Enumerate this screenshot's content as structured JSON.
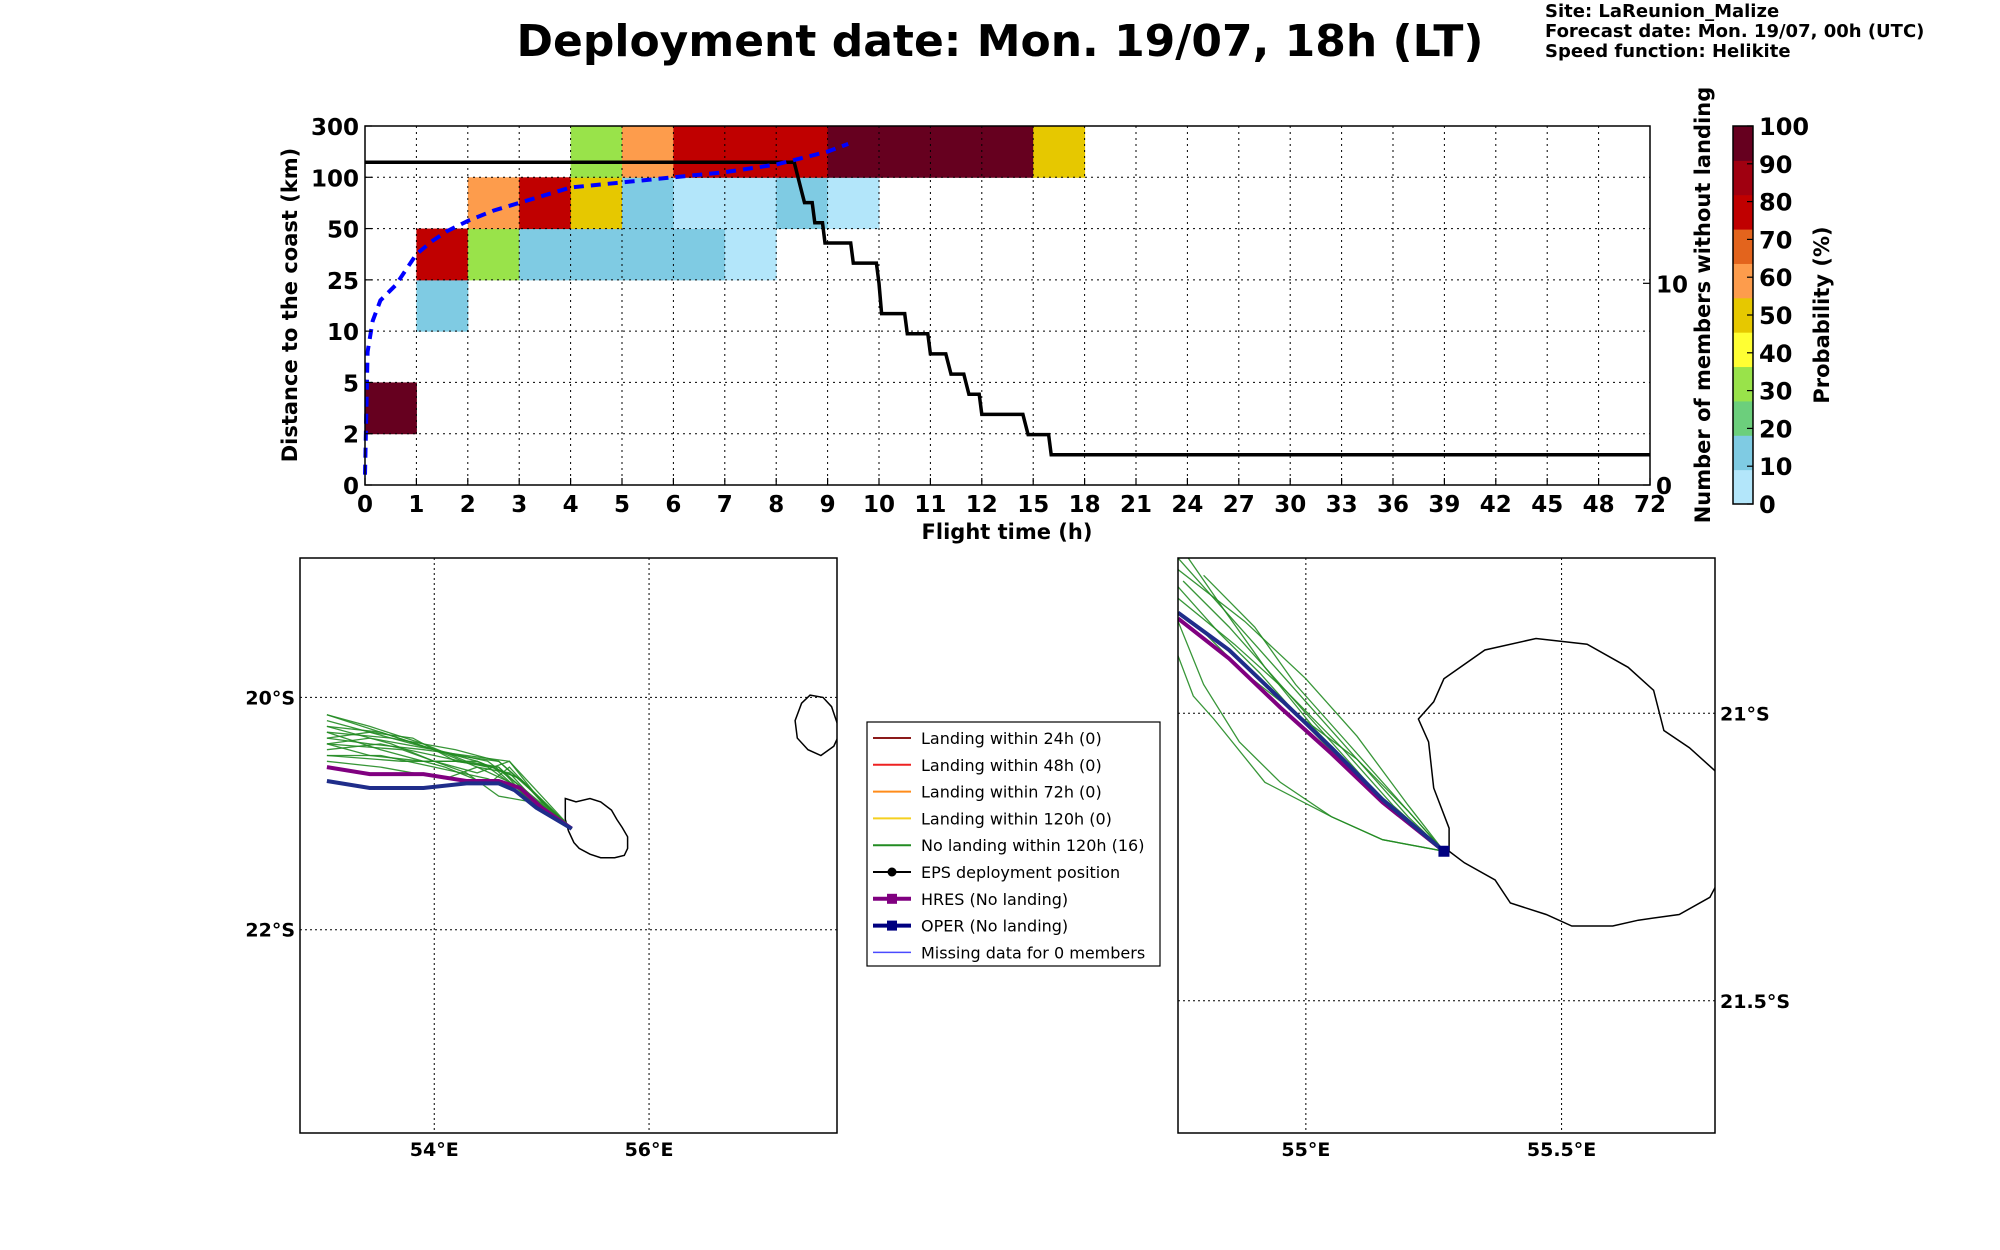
{
  "title": "Deployment date: Mon. 19/07, 18h (LT)",
  "info": {
    "site": "Site: LaReunion_Malize",
    "forecast": "Forecast date: Mon. 19/07, 00h (UTC)",
    "speed": "Speed function: Helikite"
  },
  "chart_data": [
    {
      "type": "heatmap",
      "xlabel": "Flight time (h)",
      "ylabel": "Distance to the coast (km)",
      "y2label": "Number of members without landing",
      "x_ticks": [
        "0",
        "1",
        "2",
        "3",
        "4",
        "5",
        "6",
        "7",
        "8",
        "9",
        "10",
        "11",
        "12",
        "15",
        "18",
        "21",
        "24",
        "27",
        "30",
        "33",
        "36",
        "39",
        "42",
        "45",
        "48",
        "72"
      ],
      "y_ticks": [
        "0",
        "2",
        "5",
        "10",
        "25",
        "50",
        "100",
        "300"
      ],
      "y2_ticks": [
        "0",
        "10"
      ],
      "y2_range": [
        0,
        17.8
      ],
      "grid": true,
      "colorbar": {
        "label": "Probability (%)",
        "ticks": [
          "0",
          "10",
          "20",
          "30",
          "40",
          "50",
          "60",
          "70",
          "80",
          "90",
          "100"
        ],
        "colors": [
          "#b3e6fa",
          "#7fcbe3",
          "#6ccf7c",
          "#99e34a",
          "#ffff33",
          "#e6c800",
          "#fd9c4c",
          "#e3641d",
          "#c00000",
          "#a00010",
          "#66001f"
        ]
      },
      "cells": [
        {
          "x": 0,
          "y": 1,
          "p": 100
        },
        {
          "x": 1,
          "y": 3,
          "p": 10
        },
        {
          "x": 1,
          "y": 4,
          "p": 80
        },
        {
          "x": 2,
          "y": 4,
          "p": 30
        },
        {
          "x": 2,
          "y": 5,
          "p": 60
        },
        {
          "x": 3,
          "y": 4,
          "p": 10
        },
        {
          "x": 3,
          "y": 5,
          "p": 80
        },
        {
          "x": 4,
          "y": 4,
          "p": 10
        },
        {
          "x": 4,
          "y": 5,
          "p": 50
        },
        {
          "x": 4,
          "y": 6,
          "p": 30
        },
        {
          "x": 5,
          "y": 4,
          "p": 10
        },
        {
          "x": 5,
          "y": 5,
          "p": 10
        },
        {
          "x": 5,
          "y": 6,
          "p": 60
        },
        {
          "x": 6,
          "y": 4,
          "p": 10
        },
        {
          "x": 6,
          "y": 5,
          "p": 0
        },
        {
          "x": 6,
          "y": 6,
          "p": 80
        },
        {
          "x": 7,
          "y": 4,
          "p": 0
        },
        {
          "x": 7,
          "y": 5,
          "p": 0
        },
        {
          "x": 7,
          "y": 6,
          "p": 80
        },
        {
          "x": 8,
          "y": 5,
          "p": 10
        },
        {
          "x": 8,
          "y": 6,
          "p": 80
        },
        {
          "x": 9,
          "y": 5,
          "p": 0
        },
        {
          "x": 9,
          "y": 6,
          "p": 100
        },
        {
          "x": 10,
          "y": 6,
          "p": 100
        },
        {
          "x": 11,
          "y": 6,
          "p": 100
        },
        {
          "x": 12,
          "y": 6,
          "p": 100
        },
        {
          "x": 13,
          "y": 6,
          "p": 50
        }
      ],
      "members_without_landing": {
        "x": [
          0,
          8.35,
          8.5,
          8.55,
          8.7,
          8.75,
          8.9,
          8.95,
          9.45,
          9.5,
          9.95,
          10,
          10.05,
          10.5,
          10.55,
          10.95,
          11,
          11.3,
          11.4,
          11.65,
          11.75,
          11.95,
          12,
          12.8,
          12.9,
          13.3,
          13.35,
          25
        ],
        "y": [
          16,
          16,
          14.5,
          14,
          14,
          13,
          13,
          12,
          12,
          11,
          11,
          10,
          8.5,
          8.5,
          7.5,
          7.5,
          6.5,
          6.5,
          5.5,
          5.5,
          4.5,
          4.5,
          3.5,
          3.5,
          2.5,
          2.5,
          1.5,
          1.5
        ]
      },
      "mean_distance": {
        "x": [
          0,
          0.05,
          0.15,
          0.3,
          0.6,
          0.8,
          1.0,
          1.3,
          1.6,
          2.0,
          2.5,
          3.0,
          3.5,
          4.0,
          5.0,
          6.0,
          7.0,
          8.0,
          9.0,
          9.4
        ],
        "y": [
          0.2,
          2.6,
          3.2,
          3.6,
          3.9,
          4.2,
          4.5,
          4.75,
          4.95,
          5.15,
          5.35,
          5.5,
          5.65,
          5.8,
          5.9,
          6.0,
          6.1,
          6.25,
          6.5,
          6.65
        ]
      }
    },
    {
      "type": "scatter",
      "name": "regional trajectory map",
      "xlabel": "",
      "ylabel": "",
      "x_ticks": [
        "54°E",
        "56°E"
      ],
      "y_ticks": [
        "20°S",
        "22°S"
      ],
      "lon_range": [
        52.75,
        57.75
      ],
      "lat_range": [
        -23.75,
        -18.8
      ],
      "grid": true,
      "hres_track": {
        "lon": [
          53.0,
          53.4,
          53.9,
          54.3,
          54.6,
          54.8,
          55.0,
          55.28
        ],
        "lat": [
          -20.6,
          -20.66,
          -20.66,
          -20.72,
          -20.72,
          -20.78,
          -20.95,
          -21.13
        ]
      },
      "oper_track": {
        "lon": [
          53.0,
          53.4,
          53.9,
          54.3,
          54.6,
          54.75,
          54.95,
          55.28
        ],
        "lat": [
          -20.72,
          -20.78,
          -20.78,
          -20.74,
          -20.74,
          -20.8,
          -20.95,
          -21.13
        ]
      },
      "members": [
        {
          "lon": [
            53.0,
            53.4,
            53.9,
            54.3,
            54.6,
            54.9,
            55.28
          ],
          "lat": [
            -20.15,
            -20.25,
            -20.4,
            -20.55,
            -20.6,
            -20.9,
            -21.13
          ]
        },
        {
          "lon": [
            53.0,
            53.5,
            54.0,
            54.4,
            54.7,
            54.95,
            55.28
          ],
          "lat": [
            -20.25,
            -20.3,
            -20.45,
            -20.6,
            -20.65,
            -20.9,
            -21.13
          ]
        },
        {
          "lon": [
            53.0,
            53.4,
            53.8,
            54.2,
            54.55,
            54.85,
            55.28
          ],
          "lat": [
            -20.35,
            -20.3,
            -20.35,
            -20.55,
            -20.6,
            -20.85,
            -21.13
          ]
        },
        {
          "lon": [
            53.0,
            53.5,
            54.0,
            54.5,
            54.8,
            55.28
          ],
          "lat": [
            -20.45,
            -20.4,
            -20.5,
            -20.6,
            -20.8,
            -21.13
          ]
        },
        {
          "lon": [
            53.0,
            53.6,
            54.2,
            54.6,
            54.9,
            55.28
          ],
          "lat": [
            -20.2,
            -20.35,
            -20.5,
            -20.55,
            -20.8,
            -21.13
          ]
        },
        {
          "lon": [
            53.0,
            53.4,
            53.9,
            54.4,
            54.8,
            55.28
          ],
          "lat": [
            -20.4,
            -20.5,
            -20.55,
            -20.55,
            -20.7,
            -21.13
          ]
        },
        {
          "lon": [
            53.0,
            53.5,
            54.1,
            54.5,
            54.7,
            55.0,
            55.28
          ],
          "lat": [
            -20.3,
            -20.45,
            -20.6,
            -20.75,
            -20.6,
            -20.9,
            -21.13
          ]
        },
        {
          "lon": [
            53.0,
            53.7,
            54.3,
            54.6,
            54.9,
            55.28
          ],
          "lat": [
            -20.4,
            -20.45,
            -20.65,
            -20.85,
            -20.9,
            -21.13
          ]
        },
        {
          "lon": [
            53.0,
            53.5,
            54.0,
            54.5,
            54.8,
            55.28
          ],
          "lat": [
            -20.5,
            -20.5,
            -20.6,
            -20.7,
            -20.82,
            -21.13
          ]
        },
        {
          "lon": [
            53.0,
            53.6,
            54.0,
            54.4,
            54.7,
            55.0,
            55.28
          ],
          "lat": [
            -20.25,
            -20.4,
            -20.55,
            -20.65,
            -20.55,
            -20.85,
            -21.13
          ]
        },
        {
          "lon": [
            53.0,
            53.4,
            53.9,
            54.3,
            54.7,
            55.0,
            55.28
          ],
          "lat": [
            -20.35,
            -20.4,
            -20.45,
            -20.5,
            -20.55,
            -20.9,
            -21.13
          ]
        },
        {
          "lon": [
            53.0,
            53.5,
            54.1,
            54.4,
            54.75,
            55.28
          ],
          "lat": [
            -20.55,
            -20.6,
            -20.7,
            -20.6,
            -20.75,
            -21.13
          ]
        },
        {
          "lon": [
            53.0,
            53.6,
            54.2,
            54.6,
            54.85,
            55.28
          ],
          "lat": [
            -20.3,
            -20.35,
            -20.45,
            -20.55,
            -20.75,
            -21.13
          ]
        },
        {
          "lon": [
            53.0,
            53.5,
            54.0,
            54.4,
            54.8,
            55.28
          ],
          "lat": [
            -20.15,
            -20.3,
            -20.45,
            -20.55,
            -20.7,
            -21.13
          ]
        },
        {
          "lon": [
            53.0,
            53.4,
            54.0,
            54.5,
            54.85,
            55.28
          ],
          "lat": [
            -20.4,
            -20.35,
            -20.45,
            -20.55,
            -20.8,
            -21.13
          ]
        },
        {
          "lon": [
            53.0,
            53.7,
            54.2,
            54.6,
            54.9,
            55.28
          ],
          "lat": [
            -20.5,
            -20.55,
            -20.55,
            -20.6,
            -20.85,
            -21.13
          ]
        }
      ]
    },
    {
      "type": "scatter",
      "name": "zoomed trajectory map",
      "xlabel": "",
      "ylabel": "",
      "x_ticks": [
        "55°E",
        "55.5°E"
      ],
      "y_ticks": [
        "21°S",
        "21.5°S"
      ],
      "lon_range": [
        54.75,
        55.8
      ],
      "lat_range": [
        -21.73,
        -20.73
      ],
      "grid": true,
      "deployment": {
        "lon": 55.27,
        "lat": -21.24
      },
      "hres_track": {
        "lon": [
          54.75,
          54.85,
          54.95,
          55.05,
          55.15,
          55.27
        ],
        "lat": [
          -20.835,
          -20.905,
          -20.99,
          -21.07,
          -21.155,
          -21.24
        ]
      },
      "oper_track": {
        "lon": [
          54.75,
          54.85,
          54.95,
          55.05,
          55.15,
          55.27
        ],
        "lat": [
          -20.825,
          -20.89,
          -20.975,
          -21.06,
          -21.15,
          -21.24
        ]
      },
      "members": [
        {
          "lon": [
            54.75,
            54.82,
            54.9,
            55.0,
            55.1,
            55.2,
            55.27
          ],
          "lat": [
            -20.73,
            -20.8,
            -20.88,
            -20.98,
            -21.08,
            -21.18,
            -21.24
          ]
        },
        {
          "lon": [
            54.76,
            54.85,
            54.95,
            55.05,
            55.15,
            55.27
          ],
          "lat": [
            -20.77,
            -20.85,
            -20.95,
            -21.05,
            -21.15,
            -21.24
          ]
        },
        {
          "lon": [
            54.75,
            54.86,
            54.96,
            55.07,
            55.17,
            55.27
          ],
          "lat": [
            -20.8,
            -20.88,
            -20.96,
            -21.06,
            -21.16,
            -21.24
          ]
        },
        {
          "lon": [
            54.75,
            54.8,
            54.87,
            54.95,
            55.05,
            55.15,
            55.27
          ],
          "lat": [
            -20.84,
            -20.95,
            -21.05,
            -21.12,
            -21.18,
            -21.22,
            -21.24
          ]
        },
        {
          "lon": [
            54.75,
            54.78,
            54.82,
            54.92,
            55.05,
            55.15,
            55.27
          ],
          "lat": [
            -20.9,
            -20.97,
            -21.01,
            -21.12,
            -21.18,
            -21.22,
            -21.24
          ]
        },
        {
          "lon": [
            54.8,
            54.9,
            54.98,
            55.08,
            55.18,
            55.27
          ],
          "lat": [
            -20.76,
            -20.85,
            -20.95,
            -21.05,
            -21.15,
            -21.24
          ]
        },
        {
          "lon": [
            54.75,
            54.88,
            55.0,
            55.1,
            55.2,
            55.27
          ],
          "lat": [
            -20.75,
            -20.84,
            -20.94,
            -21.04,
            -21.16,
            -21.24
          ]
        },
        {
          "lon": [
            54.79,
            54.88,
            54.98,
            55.1,
            55.2,
            55.27
          ],
          "lat": [
            -20.85,
            -20.93,
            -21.0,
            -21.08,
            -21.17,
            -21.24
          ]
        },
        {
          "lon": [
            54.77,
            54.84,
            54.92,
            55.02,
            55.14,
            55.27
          ],
          "lat": [
            -20.73,
            -20.82,
            -20.92,
            -21.03,
            -21.14,
            -21.24
          ]
        },
        {
          "lon": [
            54.75,
            54.83,
            54.91,
            55.0,
            55.12,
            55.27
          ],
          "lat": [
            -20.78,
            -20.86,
            -20.93,
            -21.02,
            -21.13,
            -21.24
          ]
        }
      ]
    }
  ],
  "legend": {
    "items": [
      {
        "label": "Landing within 24h (0)",
        "color": "#8b1a1a",
        "marker": "none",
        "width": 2
      },
      {
        "label": "Landing within 48h (0)",
        "color": "#ee2222",
        "marker": "none",
        "width": 2
      },
      {
        "label": "Landing within 72h (0)",
        "color": "#ff8c1a",
        "marker": "none",
        "width": 2
      },
      {
        "label": "Landing within 120h (0)",
        "color": "#f5d020",
        "marker": "none",
        "width": 2
      },
      {
        "label": "No landing within 120h (16)",
        "color": "#228b22",
        "marker": "none",
        "width": 2
      },
      {
        "label": "EPS deployment position",
        "color": "#000000",
        "marker": "circle",
        "width": 2
      },
      {
        "label": "HRES (No landing)",
        "color": "#800080",
        "marker": "square",
        "width": 4
      },
      {
        "label": "OPER (No landing)",
        "color": "#000080",
        "marker": "square",
        "width": 4
      },
      {
        "label": "Missing data for 0 members",
        "color": "#4a4aff",
        "marker": "none",
        "width": 1.5
      }
    ]
  },
  "colors": {
    "members_line": "#000000",
    "mean_distance_line": "#0000ff",
    "ensemble_track": "#228b22",
    "hres_track": "#800080",
    "oper_track": "#1f2d8a"
  }
}
